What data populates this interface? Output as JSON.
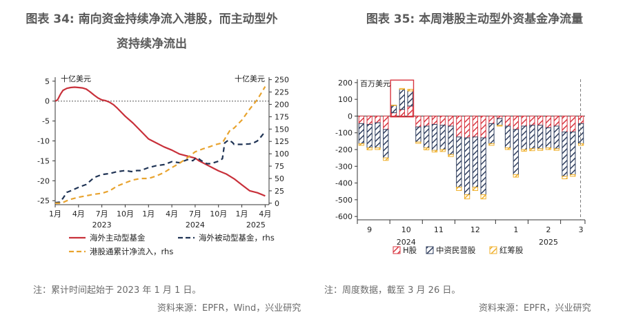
{
  "left": {
    "title_line1": "图表 34: 南向资金持续净流入港股，而主动型外",
    "title_line2": "资持续净流出",
    "note": "注：累计时间起始于 2023 年 1 月 1 日。",
    "source": "资料来源：EPFR，Wind，兴业研究",
    "chart_data": {
      "type": "line",
      "left_unit": "十亿美元",
      "right_unit": "十亿美元",
      "y_left_ticks": [
        5,
        0,
        -5,
        -10,
        -15,
        -20,
        -25
      ],
      "ylim_left": [
        -26,
        6
      ],
      "y_right_ticks": [
        250,
        225,
        200,
        175,
        150,
        125,
        100,
        75,
        50,
        25,
        0
      ],
      "ylim_right": [
        -3,
        255
      ],
      "x_tick_labels": [
        "1月",
        "4月",
        "7月",
        "10月",
        "1月",
        "4月",
        "7月",
        "10月",
        "1月",
        "4月"
      ],
      "x_tick_months": [
        0,
        3,
        6,
        9,
        12,
        15,
        18,
        21,
        24,
        27
      ],
      "xlim": [
        0,
        27.5
      ],
      "year_labels": [
        {
          "text": "2023",
          "month": 6
        },
        {
          "text": "2024",
          "month": 18
        },
        {
          "text": "2025",
          "month": 25.8
        }
      ],
      "series": [
        {
          "name": "海外主动型基金",
          "axis": "left",
          "color": "#c8303a",
          "dash": "solid",
          "x": [
            0,
            0.3,
            0.7,
            1,
            1.5,
            2,
            2.5,
            3,
            3.5,
            4,
            4.5,
            5,
            5.5,
            6,
            6.5,
            7,
            7.5,
            8,
            8.5,
            9,
            10,
            11,
            12,
            13,
            14,
            15,
            16,
            17,
            18,
            18.5,
            19,
            20,
            21,
            22,
            23,
            24,
            25,
            26,
            27
          ],
          "y": [
            0,
            0.3,
            1.8,
            2.7,
            3.2,
            3.4,
            3.5,
            3.4,
            3.3,
            3.0,
            2.3,
            1.5,
            0.8,
            0.3,
            0.1,
            -0.3,
            -0.9,
            -1.8,
            -2.8,
            -3.8,
            -5.5,
            -7.5,
            -9.5,
            -10.5,
            -11.5,
            -12.3,
            -13.3,
            -13.8,
            -14.3,
            -15.0,
            -15.5,
            -16.5,
            -17.5,
            -18.3,
            -19.5,
            -21.0,
            -22.5,
            -23.0,
            -23.8
          ]
        },
        {
          "name": "海外被动型基金，rhs",
          "axis": "right",
          "color": "#1f3354",
          "dash": "dash",
          "x": [
            0,
            0.6,
            1,
            1.5,
            2,
            3,
            4,
            5,
            6,
            7,
            8,
            9,
            9.8,
            10.5,
            11,
            12,
            13,
            14,
            15,
            16,
            17,
            17.7,
            18,
            18.3,
            18.8,
            19.5,
            20,
            21,
            21.5,
            21.8,
            22.3,
            22.8,
            23,
            24,
            25,
            25.5,
            26,
            26.5,
            27
          ],
          "y": [
            1,
            2,
            10,
            22,
            25,
            32,
            38,
            52,
            58,
            60,
            64,
            66,
            64,
            66,
            66,
            72,
            76,
            78,
            84,
            82,
            88,
            86,
            90,
            92,
            86,
            80,
            80,
            85,
            90,
            122,
            128,
            123,
            119,
            119,
            120,
            122,
            126,
            135,
            145
          ]
        },
        {
          "name": "港股通累计净流入，rhs",
          "axis": "right",
          "color": "#e8a32e",
          "dash": "dash",
          "x": [
            0,
            0.8,
            1.5,
            2,
            3,
            4,
            5,
            6,
            7,
            8,
            9,
            10,
            11,
            12,
            13,
            14,
            15,
            16,
            17,
            18,
            19,
            20,
            20.5,
            21,
            21.5,
            22,
            22.5,
            23,
            24,
            25,
            26,
            27
          ],
          "y": [
            0,
            0,
            5,
            8,
            12,
            15,
            18,
            20,
            25,
            35,
            41,
            47,
            50,
            50,
            55,
            62,
            72,
            81,
            92,
            104,
            110,
            115,
            118,
            120,
            122,
            135,
            148,
            152,
            168,
            190,
            210,
            236
          ]
        }
      ]
    }
  },
  "right": {
    "title": "图表 35: 本周港股主动型外资基金净流量",
    "note": "注：周度数据，截至 3 月 26 日。",
    "source": "资料来源：EPFR，兴业研究",
    "chart_data": {
      "type": "bar",
      "unit": "百万美元",
      "stacked": true,
      "ylim": [
        -620,
        220
      ],
      "y_ticks": [
        200,
        100,
        0,
        -100,
        -200,
        -300,
        -400,
        -500,
        -600
      ],
      "month_labels": [
        {
          "text": "9",
          "week": 1.5
        },
        {
          "text": "10",
          "week": 6
        },
        {
          "text": "11",
          "week": 10
        },
        {
          "text": "12",
          "week": 14.5
        },
        {
          "text": "1",
          "week": 19.5
        },
        {
          "text": "2",
          "week": 23.5
        },
        {
          "text": "3",
          "week": 27.5
        }
      ],
      "month_boundaries": [
        4,
        8,
        12,
        17,
        21,
        25
      ],
      "year_labels": [
        {
          "text": "2024",
          "week": 6
        },
        {
          "text": "2025",
          "week": 23.5
        }
      ],
      "legend": [
        {
          "name": "H股",
          "color": "#d8343f",
          "pattern": "hatch-red"
        },
        {
          "name": "中资民营股",
          "color": "#2f3e5e",
          "pattern": "hatch-navy"
        },
        {
          "name": "红筹股",
          "color": "#f0b12e",
          "pattern": "hatch-orange"
        }
      ],
      "series": [
        {
          "name": "H股",
          "values": [
            -45,
            -50,
            -40,
            -80,
            20,
            40,
            60,
            -65,
            -60,
            -50,
            -55,
            -60,
            -125,
            -130,
            -125,
            -130,
            -45,
            -15,
            -60,
            -80,
            -60,
            -55,
            -55,
            -70,
            -60,
            -95,
            -95,
            -45
          ]
        },
        {
          "name": "中资民营股",
          "values": [
            -120,
            -140,
            -150,
            -170,
            45,
            120,
            90,
            -90,
            -130,
            -155,
            -145,
            -170,
            -300,
            -340,
            -300,
            -340,
            -120,
            -40,
            -130,
            -270,
            -140,
            -140,
            -140,
            -120,
            -135,
            -265,
            -255,
            -120
          ]
        },
        {
          "name": "红筹股",
          "values": [
            -10,
            -12,
            -10,
            -15,
            0,
            5,
            10,
            -8,
            -12,
            -10,
            -12,
            -12,
            -20,
            -25,
            -20,
            -25,
            -10,
            -5,
            -10,
            -15,
            -10,
            -12,
            -10,
            -10,
            -10,
            -15,
            -10,
            -10
          ]
        }
      ],
      "highlight_weeks": [
        4,
        5,
        6
      ]
    }
  }
}
